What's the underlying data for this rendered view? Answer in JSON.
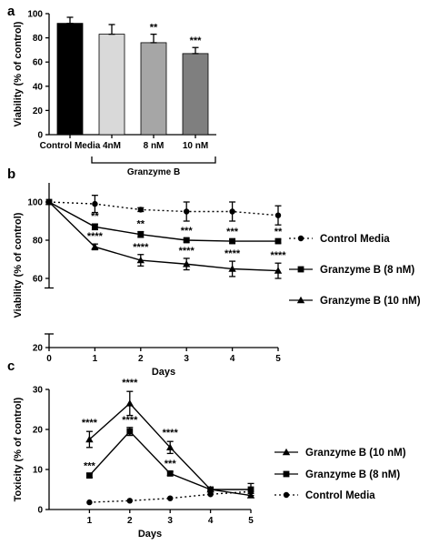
{
  "chart_data": [
    {
      "panel_label": "a",
      "type": "bar",
      "categories": [
        "Control Media",
        "4nM",
        "8 nM",
        "10 nM"
      ],
      "values": [
        92,
        83,
        76,
        67
      ],
      "errors": [
        5,
        8,
        7,
        5
      ],
      "significance": [
        "",
        "",
        "**",
        "***"
      ],
      "bar_colors": [
        "#000000",
        "#d9d9d9",
        "#a6a6a6",
        "#7f7f7f"
      ],
      "ylabel": "Viability (% of control)",
      "ylim": [
        0,
        100
      ],
      "yticks": [
        0,
        20,
        40,
        60,
        80,
        100
      ],
      "bracket_label": "Granzyme B",
      "bracket_categories": [
        "4nM",
        "8 nM",
        "10 nM"
      ]
    },
    {
      "panel_label": "b",
      "type": "line",
      "xlabel": "Days",
      "ylabel": "Viability (% of control)",
      "x": [
        0,
        1,
        2,
        3,
        4,
        5
      ],
      "xlim": [
        0,
        5
      ],
      "xticks": [
        0,
        1,
        2,
        3,
        4,
        5
      ],
      "ylim": [
        20,
        110
      ],
      "yticks": [
        20,
        60,
        80,
        100
      ],
      "axis_break": [
        25,
        55
      ],
      "legend": "right",
      "series": [
        {
          "name": "Control Media",
          "marker": "circle",
          "dash": "dotted",
          "values": [
            100,
            99,
            96,
            95,
            95,
            93
          ],
          "errors": [
            0,
            4.5,
            1,
            5,
            5,
            5
          ],
          "significance": [
            "",
            "",
            "",
            "",
            "",
            ""
          ]
        },
        {
          "name": "Granzyme B (8 nM)",
          "marker": "square",
          "dash": "solid",
          "values": [
            100,
            87,
            83,
            80,
            79.5,
            79.5
          ],
          "errors": [
            0,
            1.5,
            1.5,
            1,
            1,
            1
          ],
          "significance": [
            "",
            "**",
            "**",
            "***",
            "***",
            "**"
          ]
        },
        {
          "name": "Granzyme B (10 nM)",
          "marker": "triangle",
          "dash": "solid",
          "values": [
            100,
            76.5,
            69.5,
            67.5,
            65,
            64
          ],
          "errors": [
            0,
            1.5,
            3,
            3,
            4,
            4
          ],
          "significance": [
            "",
            "****",
            "****",
            "****",
            "****",
            "****"
          ]
        }
      ]
    },
    {
      "panel_label": "c",
      "type": "line",
      "xlabel": "Days",
      "ylabel": "Toxicity (% of control)",
      "x": [
        1,
        2,
        3,
        4,
        5
      ],
      "xlim": [
        0,
        5
      ],
      "xticks": [
        1,
        2,
        3,
        4,
        5
      ],
      "ylim": [
        0,
        30
      ],
      "yticks": [
        0,
        10,
        20,
        30
      ],
      "legend": "right",
      "series": [
        {
          "name": "Granzyme B (10 nM)",
          "marker": "triangle",
          "dash": "solid",
          "values": [
            17.5,
            26.5,
            15.5,
            5,
            3.5
          ],
          "errors": [
            2,
            3,
            1.5,
            0.5,
            0.5
          ],
          "significance": [
            "****",
            "****",
            "****",
            "",
            ""
          ]
        },
        {
          "name": "Granzyme B (8 nM)",
          "marker": "square",
          "dash": "solid",
          "values": [
            8.5,
            19.5,
            9,
            5,
            5
          ],
          "errors": [
            0.5,
            1,
            0.5,
            0.5,
            1.5
          ],
          "significance": [
            "***",
            "****",
            "***",
            "",
            ""
          ]
        },
        {
          "name": "Control Media",
          "marker": "circle",
          "dash": "dotted",
          "values": [
            1.8,
            2.2,
            2.8,
            3.8,
            4.5
          ],
          "errors": [
            0,
            0,
            0,
            0,
            0
          ],
          "significance": [
            "",
            "",
            "",
            "",
            ""
          ]
        }
      ]
    }
  ]
}
